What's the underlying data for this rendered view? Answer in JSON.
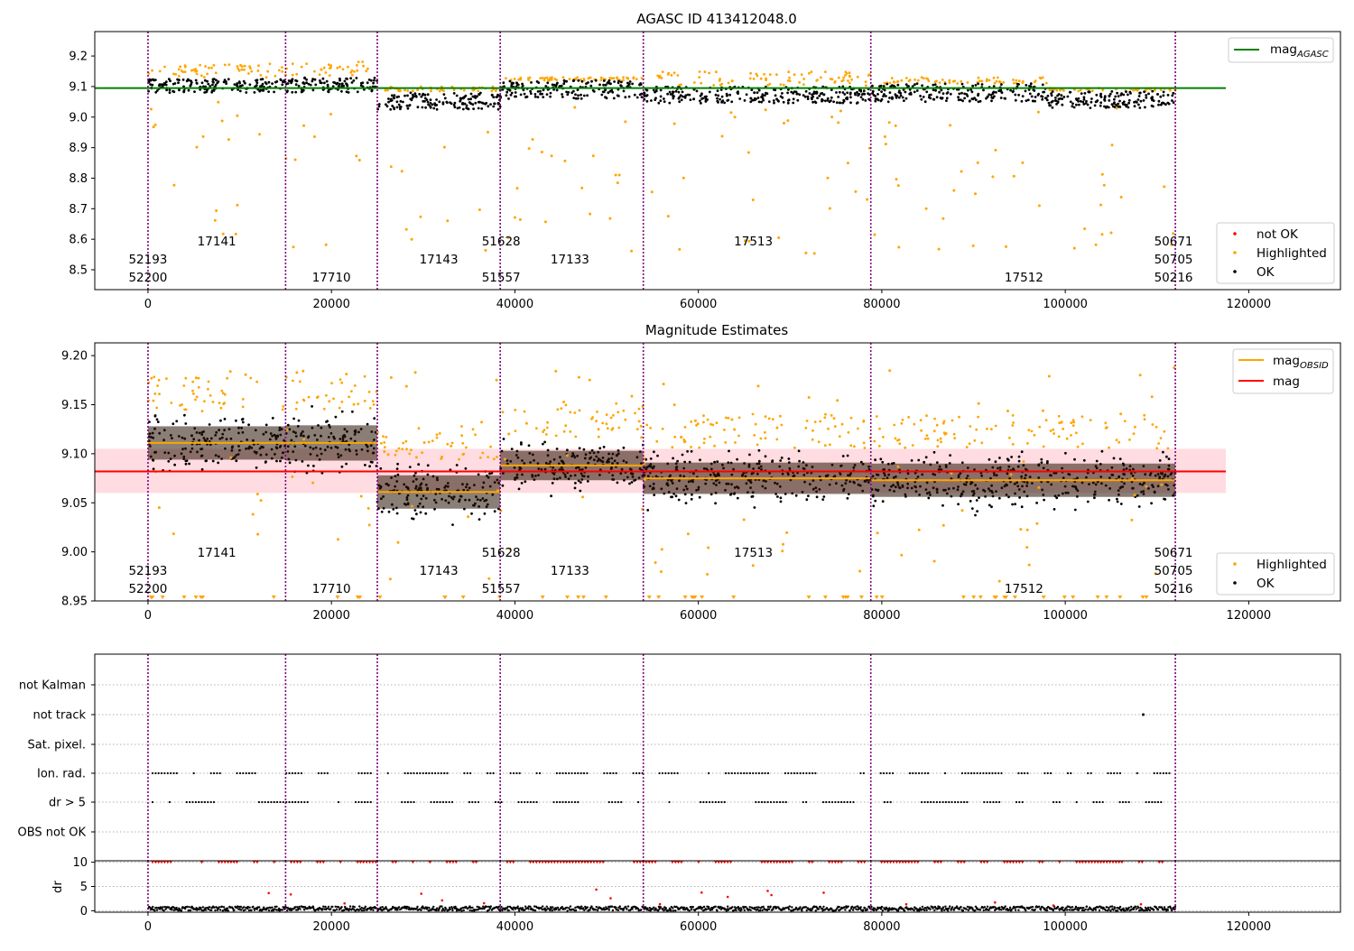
{
  "colors": {
    "ok": "#000000",
    "highlighted": "#ffa500",
    "not_ok": "#ff0000",
    "mag_agasc": "#008000",
    "mag_obsid": "#ffa500",
    "mag": "#ff0000",
    "band": "#ffc0c8",
    "obsid_line": "#800080",
    "grid": "#b0b0b0"
  },
  "chart_data": [
    {
      "type": "scatter",
      "title": "AGASC ID 413412048.0",
      "xlim": [
        -5800,
        130000
      ],
      "ylim": [
        8.435,
        9.28
      ],
      "xticks": [
        0,
        20000,
        40000,
        60000,
        80000,
        100000,
        120000
      ],
      "xtick_labels": [
        "0",
        "20000",
        "40000",
        "60000",
        "80000",
        "100000",
        "120000"
      ],
      "yticks": [
        8.5,
        8.6,
        8.7,
        8.8,
        8.9,
        9.0,
        9.1,
        9.2
      ],
      "ytick_labels": [
        "8.5",
        "8.6",
        "8.7",
        "8.8",
        "8.9",
        "9.0",
        "9.1",
        "9.2"
      ],
      "mag_agasc": 9.095,
      "mag_agasc_range": [
        -5800,
        117500
      ],
      "legend_top": {
        "position": "upper right",
        "entries": [
          "mag",
          "AGASC"
        ]
      },
      "legend_bottom": {
        "position": "lower right",
        "entries": [
          "not OK",
          "Highlighted",
          "OK"
        ]
      },
      "obsid_labels": [
        {
          "text": "52193",
          "x": 0,
          "row": 1
        },
        {
          "text": "52200",
          "x": 0,
          "row": 2
        },
        {
          "text": "17141",
          "x": 7500,
          "row": 0
        },
        {
          "text": "17710",
          "x": 20000,
          "row": 2
        },
        {
          "text": "17143",
          "x": 31700,
          "row": 1
        },
        {
          "text": "51628",
          "x": 38500,
          "row": 0
        },
        {
          "text": "51557",
          "x": 38500,
          "row": 2
        },
        {
          "text": "17133",
          "x": 46000,
          "row": 1
        },
        {
          "text": "17513",
          "x": 66000,
          "row": 0
        },
        {
          "text": "17512",
          "x": 95500,
          "row": 2
        },
        {
          "text": "50671",
          "x": 111800,
          "row": 0
        },
        {
          "text": "50705",
          "x": 111800,
          "row": 1
        },
        {
          "text": "50216",
          "x": 111800,
          "row": 2
        }
      ],
      "segments": [
        {
          "x0": 0,
          "x1": 15000,
          "ok": [
            9.08,
            9.125
          ],
          "hi": [
            9.13,
            9.175
          ]
        },
        {
          "x0": 15000,
          "x1": 25000,
          "ok": [
            9.08,
            9.13
          ],
          "hi": [
            9.135,
            9.185
          ]
        },
        {
          "x0": 25000,
          "x1": 38400,
          "ok": [
            9.025,
            9.08
          ],
          "hi": [
            9.085,
            9.1
          ]
        },
        {
          "x0": 38400,
          "x1": 54000,
          "ok": [
            9.06,
            9.12
          ],
          "hi": [
            9.12,
            9.13
          ]
        },
        {
          "x0": 54000,
          "x1": 78800,
          "ok": [
            9.045,
            9.1
          ],
          "hi": [
            9.1,
            9.15
          ]
        },
        {
          "x0": 78800,
          "x1": 98000,
          "ok": [
            9.05,
            9.11
          ],
          "hi": [
            9.11,
            9.13
          ]
        },
        {
          "x0": 98000,
          "x1": 112000,
          "ok": [
            9.03,
            9.085
          ],
          "hi": [
            9.085,
            9.095
          ]
        }
      ]
    },
    {
      "type": "scatter",
      "title": "Magnitude Estimates",
      "xlim": [
        -5800,
        130000
      ],
      "ylim": [
        8.95,
        9.213
      ],
      "xticks": [
        0,
        20000,
        40000,
        60000,
        80000,
        100000,
        120000
      ],
      "xtick_labels": [
        "0",
        "20000",
        "40000",
        "60000",
        "80000",
        "100000",
        "120000"
      ],
      "yticks": [
        8.95,
        9.0,
        9.05,
        9.1,
        9.15,
        9.2
      ],
      "ytick_labels": [
        "8.95",
        "9.00",
        "9.05",
        "9.10",
        "9.15",
        "9.20"
      ],
      "mag": 9.082,
      "mag_band": [
        9.06,
        9.105
      ],
      "mag_range": [
        -5800,
        117500
      ],
      "legend_top": {
        "position": "upper right",
        "entries": [
          "mag",
          "OBSID",
          "mag"
        ]
      },
      "legend_bottom": {
        "position": "lower right",
        "entries": [
          "Highlighted",
          "OK"
        ]
      },
      "mag_obsid": [
        {
          "x0": 0,
          "x1": 15000,
          "mag": 9.111,
          "std": 0.017
        },
        {
          "x0": 15000,
          "x1": 25000,
          "mag": 9.111,
          "std": 0.018
        },
        {
          "x0": 25000,
          "x1": 38400,
          "mag": 9.061,
          "std": 0.017
        },
        {
          "x0": 38400,
          "x1": 54000,
          "mag": 9.088,
          "std": 0.015
        },
        {
          "x0": 54000,
          "x1": 78800,
          "mag": 9.075,
          "std": 0.016
        },
        {
          "x0": 78800,
          "x1": 112000,
          "mag": 9.073,
          "std": 0.017
        }
      ],
      "obsid_labels": [
        {
          "text": "52193",
          "x": 0,
          "row": 1
        },
        {
          "text": "52200",
          "x": 0,
          "row": 2
        },
        {
          "text": "17141",
          "x": 7500,
          "row": 0
        },
        {
          "text": "17710",
          "x": 20000,
          "row": 2
        },
        {
          "text": "17143",
          "x": 31700,
          "row": 1
        },
        {
          "text": "51628",
          "x": 38500,
          "row": 0
        },
        {
          "text": "51557",
          "x": 38500,
          "row": 2
        },
        {
          "text": "17133",
          "x": 46000,
          "row": 1
        },
        {
          "text": "17513",
          "x": 66000,
          "row": 0
        },
        {
          "text": "17512",
          "x": 95500,
          "row": 2
        },
        {
          "text": "50671",
          "x": 111800,
          "row": 0
        },
        {
          "text": "50705",
          "x": 111800,
          "row": 1
        },
        {
          "text": "50216",
          "x": 111800,
          "row": 2
        }
      ]
    },
    {
      "type": "scatter",
      "title": "",
      "xlim": [
        -5800,
        130000
      ],
      "categories": [
        "not Kalman",
        "not track",
        "Sat. pixel.",
        "Ion. rad.",
        "dr > 5",
        "OBS not OK"
      ],
      "flag_rows": [
        "Ion. rad.",
        "dr > 5"
      ],
      "not_track_point": 108500,
      "grid": true
    },
    {
      "type": "scatter",
      "title": "",
      "xlim": [
        -5800,
        130000
      ],
      "ylim": [
        -0.3,
        10.3
      ],
      "ylabel": "dr",
      "yticks": [
        0,
        5,
        10
      ],
      "ytick_labels": [
        "0",
        "5",
        "10"
      ],
      "xticks": [
        0,
        20000,
        40000,
        60000,
        80000,
        100000,
        120000
      ],
      "xtick_labels": [
        "0",
        "20000",
        "40000",
        "60000",
        "80000",
        "100000",
        "120000"
      ],
      "clipped_value": 10,
      "grid": true
    }
  ],
  "obsid_boundaries": [
    0,
    15000,
    25000,
    38400,
    54000,
    78800,
    112000
  ]
}
